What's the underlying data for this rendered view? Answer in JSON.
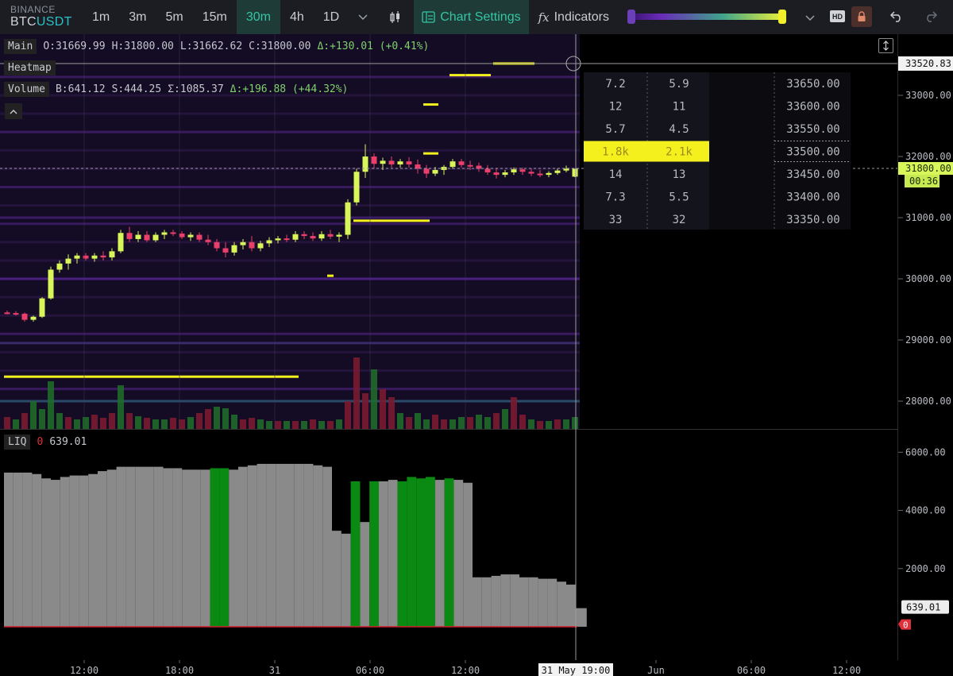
{
  "exchange": "BINANCE",
  "symbol_base": "BTC",
  "symbol_quote": "USDT",
  "timeframes": [
    {
      "label": "1m",
      "active": false
    },
    {
      "label": "3m",
      "active": false
    },
    {
      "label": "5m",
      "active": false
    },
    {
      "label": "15m",
      "active": false
    },
    {
      "label": "30m",
      "active": true
    },
    {
      "label": "4h",
      "active": false
    },
    {
      "label": "1D",
      "active": false
    }
  ],
  "toolbar": {
    "chart_settings": "Chart Settings",
    "indicators_icon": "fx",
    "indicators": "Indicators",
    "hd_badge": "HD"
  },
  "legend": {
    "main_tag": "Main",
    "open": "O:31669.99",
    "high": "H:31800.00",
    "low": "L:31662.62",
    "close": "C:31800.00",
    "change": "Δ:+130.01 (+0.41%)",
    "heatmap_tag": "Heatmap",
    "volume_tag": "Volume",
    "buy": "B:641.12",
    "sell": "S:444.25",
    "sum": "Σ:1085.37",
    "vol_change": "Δ:+196.88 (+44.32%)"
  },
  "liq": {
    "tag": "LIQ",
    "zero": "0",
    "value": "639.01"
  },
  "orderbook": {
    "rows": [
      {
        "a": "7.2",
        "b": "5.9",
        "price": "33650.00",
        "highlight": false
      },
      {
        "a": "12",
        "b": "11",
        "price": "33600.00",
        "highlight": false
      },
      {
        "a": "5.7",
        "b": "4.5",
        "price": "33550.00",
        "highlight": false
      },
      {
        "a": "1.8k",
        "b": "2.1k",
        "price": "33500.00",
        "highlight": true
      },
      {
        "a": "14",
        "b": "13",
        "price": "33450.00",
        "highlight": false
      },
      {
        "a": "7.3",
        "b": "5.5",
        "price": "33400.00",
        "highlight": false
      },
      {
        "a": "33",
        "b": "32",
        "price": "33350.00",
        "highlight": false
      }
    ]
  },
  "price_axis": {
    "ticks": [
      "33000.00",
      "32000.00",
      "31000.00",
      "30000.00",
      "29000.00",
      "28000.00"
    ],
    "crosshair_label": "33520.83",
    "last_price": "31800.00",
    "countdown": "00:36"
  },
  "liq_axis": {
    "ticks": [
      "6000.00",
      "4000.00",
      "2000.00"
    ],
    "value_label": "639.01",
    "zero_label": "0"
  },
  "time_axis": {
    "ticks": [
      "12:00",
      "18:00",
      "31",
      "06:00",
      "12:00",
      "Jun",
      "06:00",
      "12:00"
    ],
    "crosshair_label": "31 May 19:00"
  },
  "colors": {
    "up": "#d8f55a",
    "down": "#ea3f6a",
    "accent": "#34c6a4",
    "heat_bright": "#f3f01e",
    "liq_gray": "#8a8a8a",
    "liq_green": "#0a8a12"
  },
  "chart_data": {
    "type": "candlestick",
    "interval": "30m",
    "ylim": [
      27600,
      33900
    ],
    "candles": [
      [
        29450,
        29480,
        29420,
        29440
      ],
      [
        29440,
        29470,
        29400,
        29430
      ],
      [
        29430,
        29450,
        29300,
        29330
      ],
      [
        29330,
        29400,
        29300,
        29380
      ],
      [
        29380,
        29700,
        29360,
        29680
      ],
      [
        29680,
        30200,
        29660,
        30150
      ],
      [
        30150,
        30300,
        30100,
        30250
      ],
      [
        30250,
        30400,
        30150,
        30330
      ],
      [
        30330,
        30420,
        30250,
        30380
      ],
      [
        30380,
        30420,
        30300,
        30330
      ],
      [
        30330,
        30420,
        30280,
        30380
      ],
      [
        30380,
        30450,
        30300,
        30350
      ],
      [
        30350,
        30500,
        30300,
        30450
      ],
      [
        30450,
        30800,
        30420,
        30750
      ],
      [
        30750,
        30850,
        30600,
        30650
      ],
      [
        30650,
        30780,
        30600,
        30720
      ],
      [
        30720,
        30780,
        30600,
        30630
      ],
      [
        30630,
        30760,
        30600,
        30720
      ],
      [
        30720,
        30800,
        30650,
        30760
      ],
      [
        30760,
        30800,
        30700,
        30740
      ],
      [
        30740,
        30780,
        30650,
        30680
      ],
      [
        30680,
        30760,
        30620,
        30720
      ],
      [
        30720,
        30760,
        30600,
        30640
      ],
      [
        30640,
        30720,
        30550,
        30600
      ],
      [
        30600,
        30650,
        30450,
        30500
      ],
      [
        30500,
        30600,
        30350,
        30430
      ],
      [
        30430,
        30600,
        30380,
        30550
      ],
      [
        30550,
        30650,
        30480,
        30600
      ],
      [
        30600,
        30700,
        30450,
        30500
      ],
      [
        30500,
        30620,
        30450,
        30580
      ],
      [
        30580,
        30680,
        30520,
        30630
      ],
      [
        30630,
        30700,
        30580,
        30660
      ],
      [
        30660,
        30720,
        30600,
        30640
      ],
      [
        30640,
        30780,
        30600,
        30730
      ],
      [
        30730,
        30780,
        30650,
        30700
      ],
      [
        30700,
        30760,
        30620,
        30660
      ],
      [
        30660,
        30780,
        30620,
        30730
      ],
      [
        30730,
        30800,
        30650,
        30690
      ],
      [
        30690,
        30760,
        30600,
        30720
      ],
      [
        30720,
        31300,
        30650,
        31250
      ],
      [
        31250,
        31800,
        31200,
        31750
      ],
      [
        31750,
        32200,
        31650,
        32000
      ],
      [
        32000,
        32050,
        31800,
        31880
      ],
      [
        31880,
        31980,
        31780,
        31930
      ],
      [
        31930,
        32000,
        31820,
        31870
      ],
      [
        31870,
        31960,
        31820,
        31920
      ],
      [
        31920,
        31990,
        31820,
        31870
      ],
      [
        31870,
        31950,
        31720,
        31800
      ],
      [
        31800,
        31860,
        31650,
        31720
      ],
      [
        31720,
        31830,
        31680,
        31780
      ],
      [
        31780,
        31860,
        31700,
        31830
      ],
      [
        31830,
        31960,
        31800,
        31920
      ],
      [
        31920,
        31960,
        31820,
        31860
      ],
      [
        31860,
        31930,
        31780,
        31850
      ],
      [
        31850,
        31900,
        31750,
        31800
      ],
      [
        31800,
        31860,
        31700,
        31740
      ],
      [
        31740,
        31800,
        31640,
        31700
      ],
      [
        31700,
        31780,
        31660,
        31740
      ],
      [
        31740,
        31820,
        31700,
        31790
      ],
      [
        31790,
        31820,
        31700,
        31750
      ],
      [
        31750,
        31800,
        31680,
        31720
      ],
      [
        31720,
        31780,
        31660,
        31700
      ],
      [
        31700,
        31760,
        31660,
        31730
      ],
      [
        31730,
        31800,
        31700,
        31770
      ],
      [
        31770,
        31850,
        31740,
        31800
      ],
      [
        31669.99,
        31800,
        31662.62,
        31800
      ]
    ],
    "volumes": [
      [
        0.15,
        "down"
      ],
      [
        0.12,
        "up"
      ],
      [
        0.2,
        "down"
      ],
      [
        0.35,
        "up"
      ],
      [
        0.25,
        "up"
      ],
      [
        0.6,
        "up"
      ],
      [
        0.2,
        "up"
      ],
      [
        0.15,
        "down"
      ],
      [
        0.12,
        "up"
      ],
      [
        0.15,
        "up"
      ],
      [
        0.18,
        "down"
      ],
      [
        0.14,
        "down"
      ],
      [
        0.2,
        "down"
      ],
      [
        0.55,
        "up"
      ],
      [
        0.2,
        "down"
      ],
      [
        0.16,
        "up"
      ],
      [
        0.14,
        "down"
      ],
      [
        0.12,
        "up"
      ],
      [
        0.12,
        "up"
      ],
      [
        0.14,
        "down"
      ],
      [
        0.12,
        "down"
      ],
      [
        0.15,
        "up"
      ],
      [
        0.2,
        "down"
      ],
      [
        0.25,
        "down"
      ],
      [
        0.28,
        "up"
      ],
      [
        0.26,
        "up"
      ],
      [
        0.18,
        "up"
      ],
      [
        0.12,
        "down"
      ],
      [
        0.14,
        "down"
      ],
      [
        0.12,
        "up"
      ],
      [
        0.1,
        "up"
      ],
      [
        0.1,
        "down"
      ],
      [
        0.1,
        "up"
      ],
      [
        0.1,
        "down"
      ],
      [
        0.1,
        "up"
      ],
      [
        0.12,
        "down"
      ],
      [
        0.1,
        "up"
      ],
      [
        0.1,
        "down"
      ],
      [
        0.12,
        "up"
      ],
      [
        0.35,
        "down"
      ],
      [
        0.9,
        "down"
      ],
      [
        0.45,
        "down"
      ],
      [
        0.75,
        "up"
      ],
      [
        0.5,
        "down"
      ],
      [
        0.4,
        "down"
      ],
      [
        0.2,
        "up"
      ],
      [
        0.15,
        "down"
      ],
      [
        0.2,
        "up"
      ],
      [
        0.12,
        "up"
      ],
      [
        0.18,
        "down"
      ],
      [
        0.12,
        "down"
      ],
      [
        0.12,
        "up"
      ],
      [
        0.15,
        "up"
      ],
      [
        0.15,
        "down"
      ],
      [
        0.18,
        "up"
      ],
      [
        0.15,
        "up"
      ],
      [
        0.2,
        "down"
      ],
      [
        0.25,
        "up"
      ],
      [
        0.4,
        "down"
      ],
      [
        0.18,
        "down"
      ],
      [
        0.12,
        "up"
      ],
      [
        0.1,
        "down"
      ],
      [
        0.1,
        "up"
      ],
      [
        0.12,
        "down"
      ],
      [
        0.12,
        "up"
      ],
      [
        0.15,
        "up"
      ]
    ],
    "heat_bright_levels": [
      {
        "price": 33520,
        "from": 56,
        "to": 60
      },
      {
        "price": 33330,
        "from": 51,
        "to": 55
      },
      {
        "price": 32850,
        "from": 48,
        "to": 49
      },
      {
        "price": 32050,
        "from": 48,
        "to": 49
      },
      {
        "price": 30950,
        "from": 40,
        "to": 48
      },
      {
        "price": 30050,
        "from": 37,
        "to": 37
      },
      {
        "price": 28400,
        "from": 0,
        "to": 33
      }
    ],
    "liquidations": [
      [
        5300,
        "gray"
      ],
      [
        5300,
        "gray"
      ],
      [
        5300,
        "gray"
      ],
      [
        5250,
        "gray"
      ],
      [
        5100,
        "gray"
      ],
      [
        5050,
        "gray"
      ],
      [
        5150,
        "gray"
      ],
      [
        5200,
        "gray"
      ],
      [
        5200,
        "gray"
      ],
      [
        5250,
        "gray"
      ],
      [
        5350,
        "gray"
      ],
      [
        5400,
        "gray"
      ],
      [
        5500,
        "gray"
      ],
      [
        5500,
        "gray"
      ],
      [
        5500,
        "gray"
      ],
      [
        5500,
        "gray"
      ],
      [
        5500,
        "gray"
      ],
      [
        5450,
        "gray"
      ],
      [
        5450,
        "gray"
      ],
      [
        5400,
        "gray"
      ],
      [
        5400,
        "gray"
      ],
      [
        5400,
        "gray"
      ],
      [
        5450,
        "green"
      ],
      [
        5450,
        "green"
      ],
      [
        5400,
        "gray"
      ],
      [
        5500,
        "gray"
      ],
      [
        5550,
        "gray"
      ],
      [
        5600,
        "gray"
      ],
      [
        5600,
        "gray"
      ],
      [
        5600,
        "gray"
      ],
      [
        5600,
        "gray"
      ],
      [
        5600,
        "gray"
      ],
      [
        5600,
        "gray"
      ],
      [
        5550,
        "gray"
      ],
      [
        5500,
        "gray"
      ],
      [
        3300,
        "gray"
      ],
      [
        3200,
        "gray"
      ],
      [
        5000,
        "green"
      ],
      [
        3600,
        "gray"
      ],
      [
        5000,
        "green"
      ],
      [
        5000,
        "gray"
      ],
      [
        5050,
        "gray"
      ],
      [
        5000,
        "green"
      ],
      [
        5150,
        "green"
      ],
      [
        5100,
        "green"
      ],
      [
        5150,
        "green"
      ],
      [
        5050,
        "gray"
      ],
      [
        5100,
        "green"
      ],
      [
        5050,
        "gray"
      ],
      [
        4950,
        "gray"
      ],
      [
        1700,
        "gray"
      ],
      [
        1700,
        "gray"
      ],
      [
        1750,
        "gray"
      ],
      [
        1800,
        "gray"
      ],
      [
        1800,
        "gray"
      ],
      [
        1700,
        "gray"
      ],
      [
        1700,
        "gray"
      ],
      [
        1650,
        "gray"
      ],
      [
        1650,
        "gray"
      ],
      [
        1550,
        "gray"
      ],
      [
        1450,
        "gray"
      ],
      [
        639.01,
        "gray"
      ]
    ],
    "liq_ylim": [
      0,
      6800
    ]
  }
}
